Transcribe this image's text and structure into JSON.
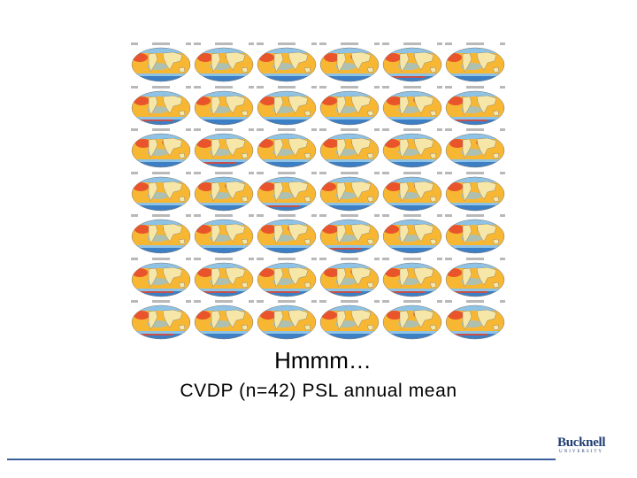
{
  "slide": {
    "title": "Hmmm…",
    "subtitle": "CVDP (n=42) PSL annual mean"
  },
  "figure": {
    "panel_rows": 7,
    "panel_cols": 6,
    "colors": {
      "ocean_warm": "#f7b733",
      "ocean_hot": "#e8432a",
      "ocean_cool": "#8ec3e6",
      "ocean_cold": "#3d7fc4",
      "land": "#f6e7a8",
      "outline": "#7a7a7a"
    }
  },
  "branding": {
    "logo_word": "Bucknell",
    "logo_sub": "UNIVERSITY",
    "rule_color": "#3a5f9a"
  }
}
